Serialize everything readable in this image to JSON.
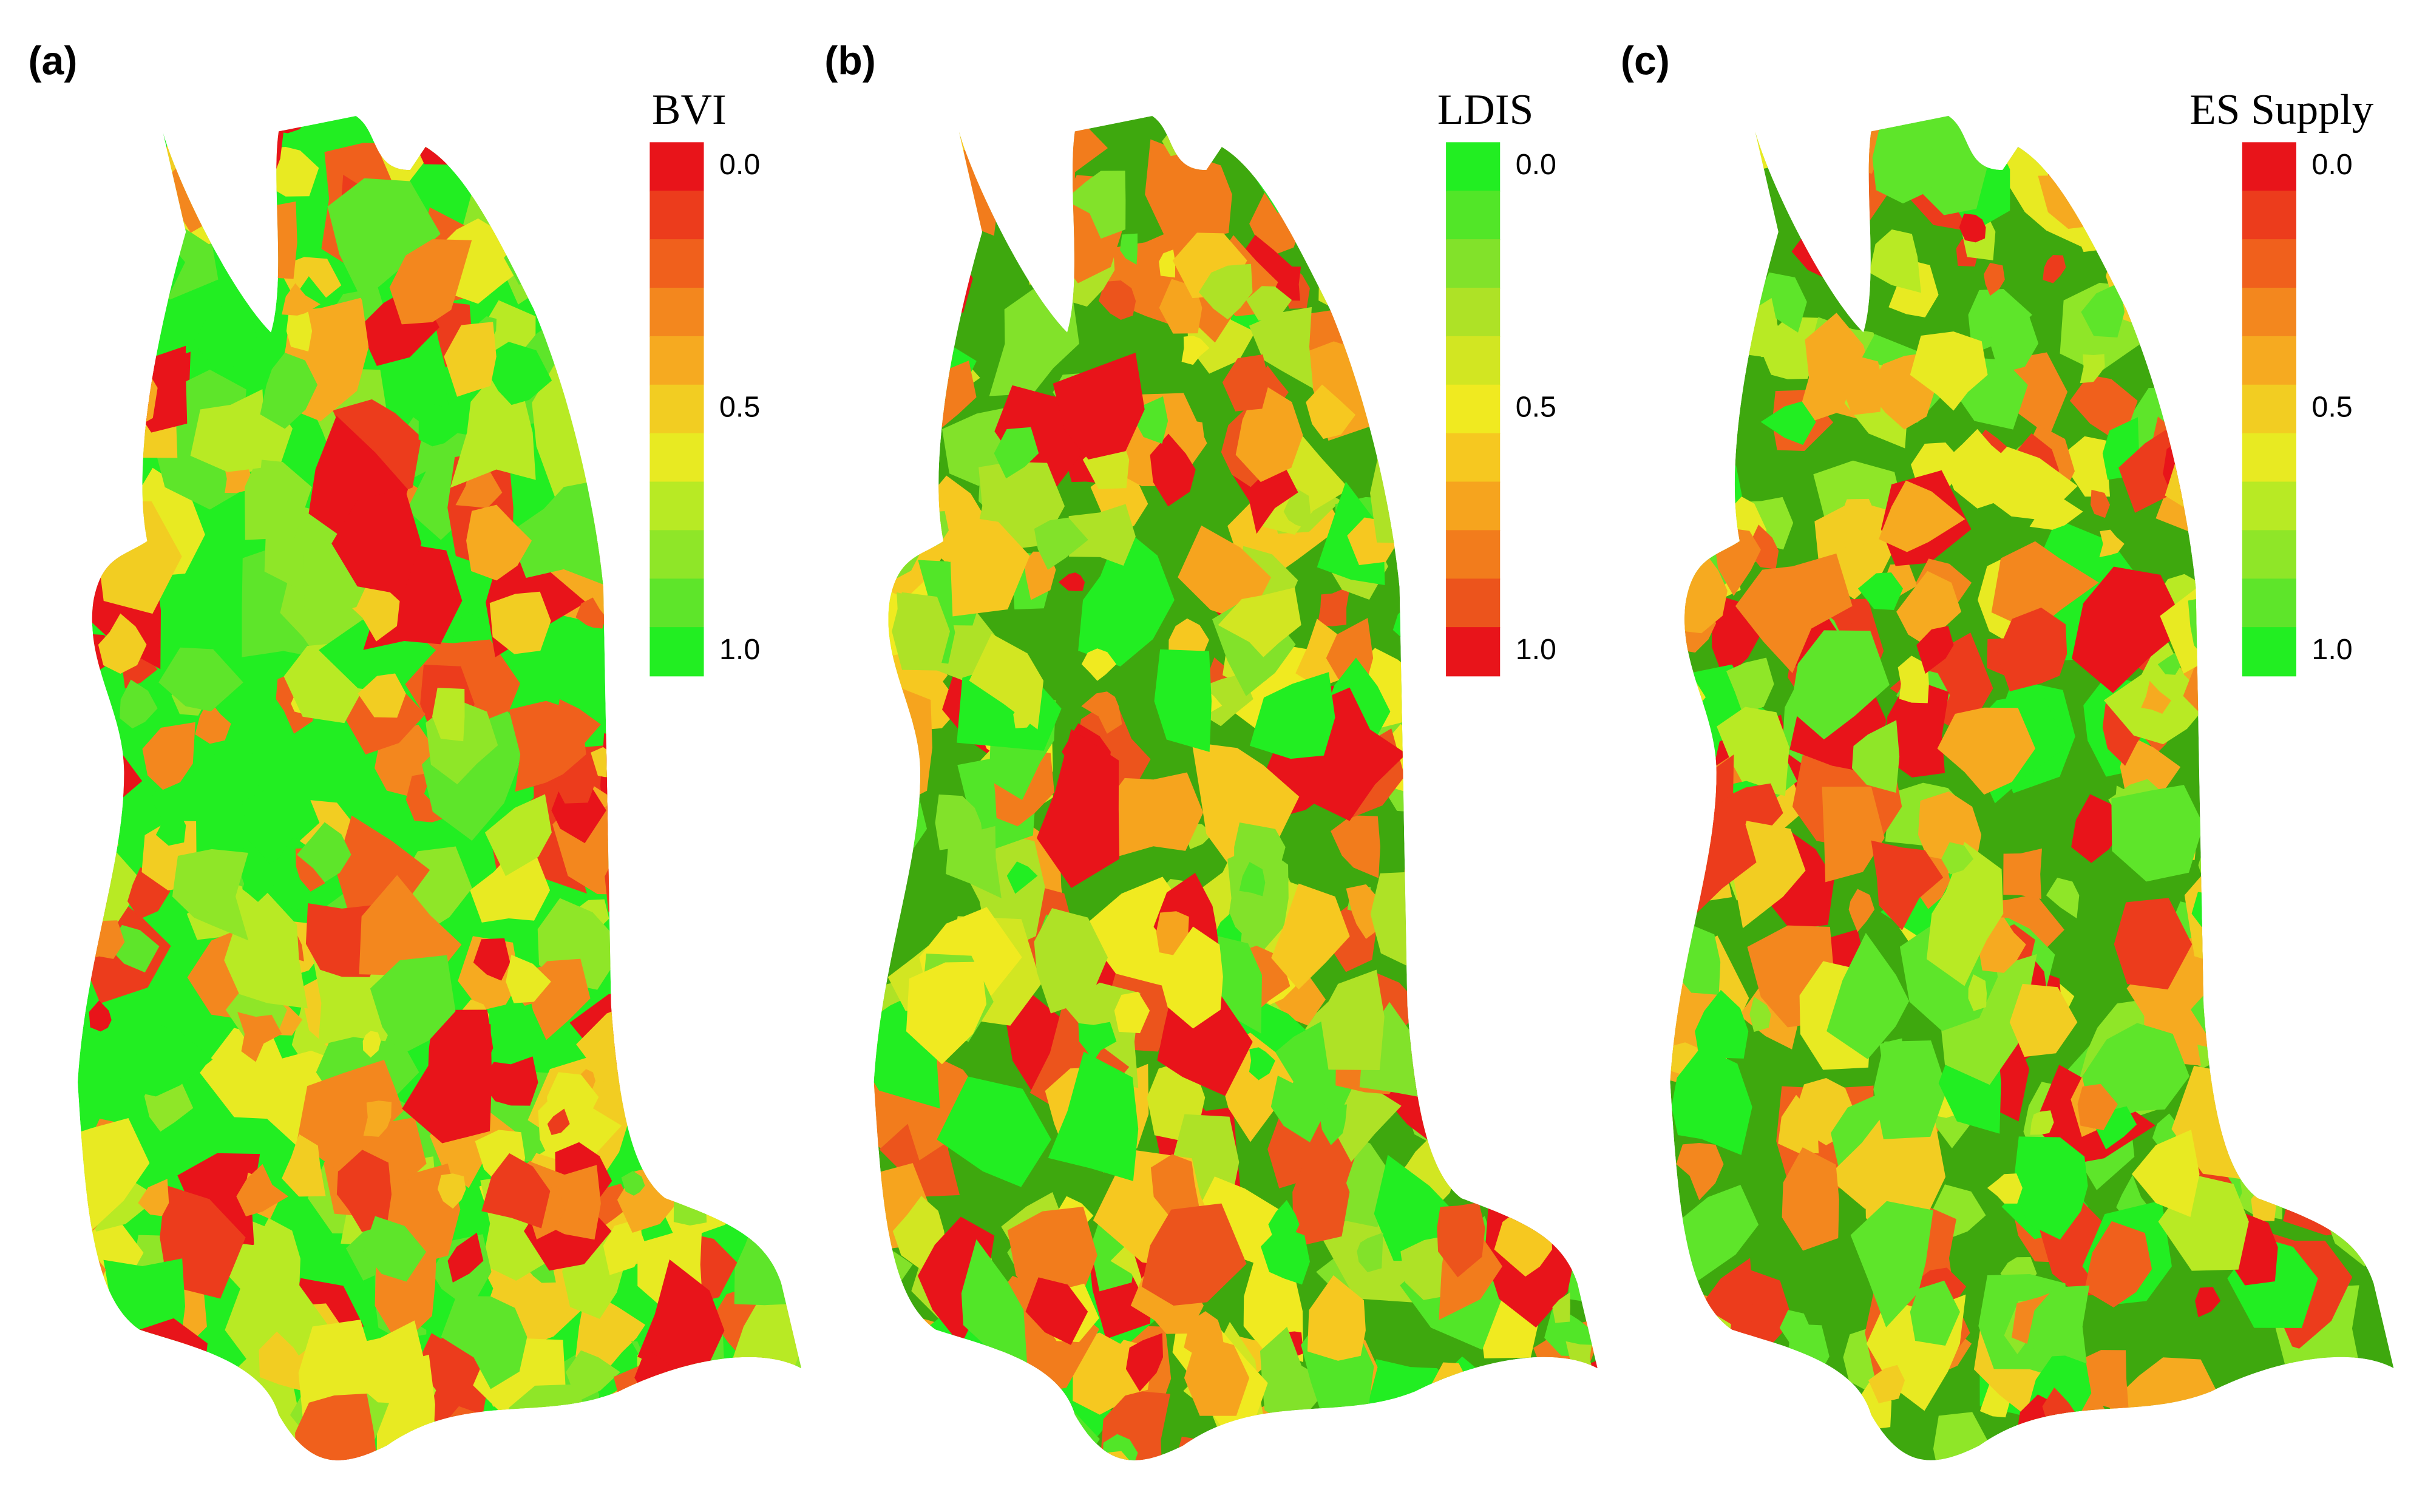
{
  "panels": [
    {
      "label": "(a)",
      "base_color": "#22ee22",
      "legend": {
        "title": "BVI",
        "range": [
          0,
          1
        ],
        "colors": [
          "#e8141a",
          "#ec3c1c",
          "#f0601c",
          "#f3871e",
          "#f6aa20",
          "#f2cd22",
          "#e8ea22",
          "#b8ea24",
          "#8fe628",
          "#5ee52a",
          "#22ee22"
        ],
        "ticks": [
          {
            "value": 0,
            "label": "0.0"
          },
          {
            "value": 0.5,
            "label": "0.5"
          },
          {
            "value": 1,
            "label": "1.0"
          }
        ]
      }
    },
    {
      "label": "(b)",
      "base_color": "#3ea80e",
      "legend": {
        "title": "LDIS",
        "range": [
          0,
          1
        ],
        "colors": [
          "#22ee22",
          "#52e628",
          "#82e22a",
          "#aee226",
          "#d2e622",
          "#f0ea20",
          "#f6c820",
          "#f6a41e",
          "#f27c1c",
          "#ec541c",
          "#e8141a"
        ],
        "ticks": [
          {
            "value": 0,
            "label": "0.0"
          },
          {
            "value": 0.5,
            "label": "0.5"
          },
          {
            "value": 1,
            "label": "1.0"
          }
        ]
      }
    },
    {
      "label": "(c)",
      "base_color": "#3ea80e",
      "legend": {
        "title": "ES Supply",
        "range": [
          0,
          1
        ],
        "colors": [
          "#e8141a",
          "#ec3c1c",
          "#f0601c",
          "#f3871e",
          "#f6aa20",
          "#f2cd22",
          "#e8ea22",
          "#b8ea24",
          "#8fe628",
          "#5ee52a",
          "#22ee22"
        ],
        "ticks": [
          {
            "value": 0,
            "label": "0.0"
          },
          {
            "value": 0.5,
            "label": "0.5"
          },
          {
            "value": 1,
            "label": "1.0"
          }
        ]
      }
    }
  ]
}
